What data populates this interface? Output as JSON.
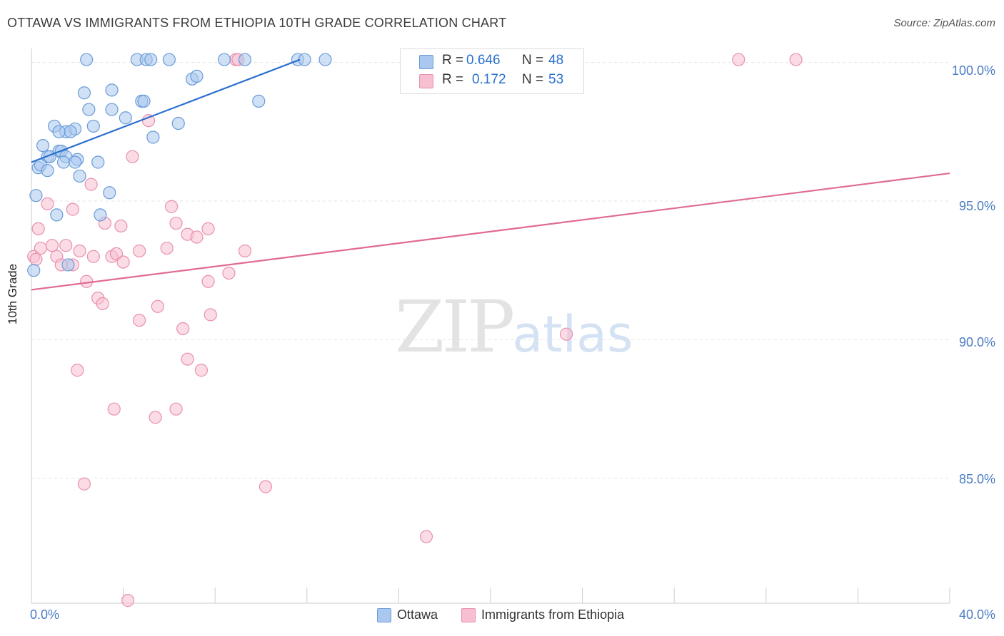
{
  "header": {
    "title": "OTTAWA VS IMMIGRANTS FROM ETHIOPIA 10TH GRADE CORRELATION CHART",
    "source": "Source: ZipAtlas.com"
  },
  "watermark": {
    "zip": "ZIP",
    "atlas": "atlas"
  },
  "stats": {
    "ottawa": {
      "r_label": "R =",
      "r_value": "0.646",
      "n_label": "N =",
      "n_value": "48"
    },
    "ethiopia": {
      "r_label": "R =",
      "r_value": "0.172",
      "n_label": "N =",
      "n_value": "53"
    }
  },
  "legend": {
    "ottawa": "Ottawa",
    "ethiopia": "Immigrants from Ethiopia"
  },
  "colors": {
    "ottawa_fill": "#aac8ef",
    "ottawa_stroke": "#6a9bd8",
    "ottawa_line": "#2a6fcf",
    "ethiopia_fill": "#f7bfd0",
    "ethiopia_stroke": "#e890ad",
    "ethiopia_line": "#e06a93",
    "grid": "#e6e6e6",
    "tick_text": "#4a7cc4"
  },
  "chart_data": {
    "type": "scatter",
    "title": "OTTAWA VS IMMIGRANTS FROM ETHIOPIA 10TH GRADE CORRELATION CHART",
    "xlabel": "",
    "ylabel": "10th Grade",
    "xlim": [
      0,
      40
    ],
    "ylim": [
      80.5,
      100.5
    ],
    "x_tick_labels": [
      "0.0%",
      "40.0%"
    ],
    "y_ticks": [
      85,
      90,
      95,
      100
    ],
    "y_tick_labels": [
      "85.0%",
      "90.0%",
      "95.0%",
      "100.0%"
    ],
    "series": [
      {
        "name": "Ottawa",
        "r": 0.646,
        "n": 48,
        "trend": {
          "x": [
            0.0,
            11.7
          ],
          "y": [
            96.4,
            100.1
          ]
        },
        "points": [
          [
            2.4,
            100.1
          ],
          [
            4.6,
            100.1
          ],
          [
            5.0,
            100.1
          ],
          [
            5.2,
            100.1
          ],
          [
            6.0,
            100.1
          ],
          [
            8.4,
            100.1
          ],
          [
            9.3,
            100.1
          ],
          [
            11.6,
            100.1
          ],
          [
            11.9,
            100.1
          ],
          [
            12.8,
            100.1
          ],
          [
            2.3,
            98.9
          ],
          [
            3.5,
            98.3
          ],
          [
            3.5,
            99.0
          ],
          [
            7.0,
            99.4
          ],
          [
            7.2,
            99.5
          ],
          [
            9.9,
            98.6
          ],
          [
            4.8,
            98.6
          ],
          [
            4.9,
            98.6
          ],
          [
            2.5,
            98.3
          ],
          [
            1.0,
            97.7
          ],
          [
            2.7,
            97.7
          ],
          [
            4.1,
            98.0
          ],
          [
            6.4,
            97.8
          ],
          [
            1.5,
            97.5
          ],
          [
            1.9,
            97.6
          ],
          [
            1.7,
            97.5
          ],
          [
            0.5,
            97.0
          ],
          [
            1.2,
            97.5
          ],
          [
            5.3,
            97.3
          ],
          [
            0.7,
            96.6
          ],
          [
            1.2,
            96.8
          ],
          [
            1.3,
            96.8
          ],
          [
            1.5,
            96.6
          ],
          [
            0.8,
            96.6
          ],
          [
            2.0,
            96.5
          ],
          [
            2.9,
            96.4
          ],
          [
            0.3,
            96.2
          ],
          [
            0.4,
            96.3
          ],
          [
            0.7,
            96.1
          ],
          [
            2.1,
            95.9
          ],
          [
            3.4,
            95.3
          ],
          [
            0.2,
            95.2
          ],
          [
            1.1,
            94.5
          ],
          [
            3.0,
            94.5
          ],
          [
            1.6,
            92.7
          ],
          [
            0.1,
            92.5
          ],
          [
            1.4,
            96.4
          ],
          [
            1.9,
            96.4
          ]
        ]
      },
      {
        "name": "Immigrants from Ethiopia",
        "r": 0.172,
        "n": 53,
        "trend": {
          "x": [
            0.0,
            40.0
          ],
          "y": [
            91.8,
            96.0
          ]
        },
        "points": [
          [
            8.9,
            100.1
          ],
          [
            9.0,
            100.1
          ],
          [
            30.8,
            100.1
          ],
          [
            33.3,
            100.1
          ],
          [
            5.1,
            97.9
          ],
          [
            4.4,
            96.6
          ],
          [
            2.6,
            95.6
          ],
          [
            6.1,
            94.8
          ],
          [
            0.7,
            94.9
          ],
          [
            1.8,
            94.7
          ],
          [
            0.3,
            94.0
          ],
          [
            3.2,
            94.2
          ],
          [
            3.9,
            94.1
          ],
          [
            6.3,
            94.2
          ],
          [
            6.8,
            93.8
          ],
          [
            7.2,
            93.7
          ],
          [
            7.7,
            94.0
          ],
          [
            0.1,
            93.0
          ],
          [
            0.4,
            93.3
          ],
          [
            0.9,
            93.4
          ],
          [
            1.5,
            93.4
          ],
          [
            2.1,
            93.2
          ],
          [
            4.7,
            93.2
          ],
          [
            5.9,
            93.3
          ],
          [
            9.3,
            93.2
          ],
          [
            1.1,
            93.0
          ],
          [
            2.7,
            93.0
          ],
          [
            3.5,
            93.0
          ],
          [
            3.7,
            93.1
          ],
          [
            4.0,
            92.8
          ],
          [
            1.3,
            92.7
          ],
          [
            1.8,
            92.7
          ],
          [
            8.6,
            92.4
          ],
          [
            7.7,
            92.1
          ],
          [
            2.4,
            92.1
          ],
          [
            2.9,
            91.5
          ],
          [
            3.1,
            91.3
          ],
          [
            5.5,
            91.2
          ],
          [
            7.8,
            90.9
          ],
          [
            4.7,
            90.7
          ],
          [
            6.6,
            90.4
          ],
          [
            23.3,
            90.2
          ],
          [
            6.8,
            89.3
          ],
          [
            7.4,
            88.9
          ],
          [
            2.0,
            88.9
          ],
          [
            3.6,
            87.5
          ],
          [
            6.3,
            87.5
          ],
          [
            5.4,
            87.2
          ],
          [
            2.3,
            84.8
          ],
          [
            10.2,
            84.7
          ],
          [
            17.2,
            82.9
          ],
          [
            4.2,
            80.6
          ],
          [
            0.2,
            92.9
          ]
        ]
      }
    ]
  }
}
